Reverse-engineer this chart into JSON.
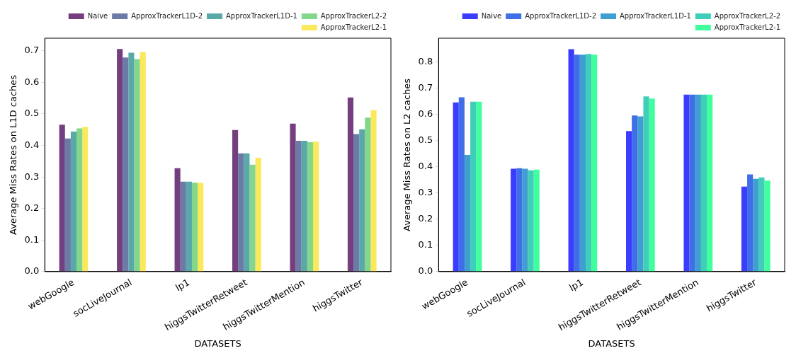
{
  "chart_data": [
    {
      "type": "bar",
      "xlabel": "DATASETS",
      "ylabel": "Average Miss Rates on L1D caches",
      "categories": [
        "webGoogle",
        "socLiveJournal",
        "lp1",
        "higgsTwitterRetweet",
        "higgsTwitterMention",
        "higgsTwitter"
      ],
      "ylim": [
        0,
        0.74
      ],
      "yticks": [
        {
          "value": 0,
          "label": "0.0"
        },
        0.1,
        0.2,
        0.3,
        0.4,
        0.5,
        0.6,
        0.7
      ],
      "legend": "top right",
      "grid": false,
      "series": [
        {
          "name": "Naive",
          "color": "#743f7f",
          "values": [
            0.466,
            0.706,
            0.328,
            0.449,
            0.469,
            0.552
          ]
        },
        {
          "name": "ApproxTrackerL1D-2",
          "color": "#6b7ba6",
          "values": [
            0.422,
            0.679,
            0.285,
            0.375,
            0.415,
            0.436
          ]
        },
        {
          "name": "ApproxTrackerL1D-1",
          "color": "#5aa9a9",
          "values": [
            0.444,
            0.694,
            0.285,
            0.375,
            0.415,
            0.451
          ]
        },
        {
          "name": "ApproxTrackerL2-2",
          "color": "#84d68a",
          "values": [
            0.454,
            0.674,
            0.282,
            0.339,
            0.41,
            0.488
          ]
        },
        {
          "name": "ApproxTrackerL2-1",
          "color": "#fbe95c",
          "values": [
            0.459,
            0.696,
            0.282,
            0.361,
            0.412,
            0.512
          ]
        }
      ]
    },
    {
      "type": "bar",
      "xlabel": "DATASETS",
      "ylabel": "Average Miss Rates on L2 caches",
      "categories": [
        "webGoogle",
        "socLiveJournal",
        "lp1",
        "higgsTwitterRetweet",
        "higgsTwitterMention",
        "higgsTwitter"
      ],
      "ylim": [
        0,
        0.89
      ],
      "yticks": [
        {
          "value": 0,
          "label": "0.0"
        },
        0.1,
        0.2,
        0.3,
        0.4,
        0.5,
        0.6,
        0.7,
        0.8
      ],
      "legend": "top right",
      "grid": false,
      "series": [
        {
          "name": "Naive",
          "color": "#3c3cff",
          "values": [
            0.645,
            0.392,
            0.848,
            0.536,
            0.675,
            0.324
          ]
        },
        {
          "name": "ApproxTrackerL1D-2",
          "color": "#3f6fe6",
          "values": [
            0.665,
            0.394,
            0.827,
            0.595,
            0.675,
            0.371
          ]
        },
        {
          "name": "ApproxTrackerL1D-1",
          "color": "#3f9fd0",
          "values": [
            0.445,
            0.392,
            0.827,
            0.592,
            0.675,
            0.354
          ]
        },
        {
          "name": "ApproxTrackerL2-2",
          "color": "#3fcfb8",
          "values": [
            0.648,
            0.386,
            0.83,
            0.668,
            0.675,
            0.359
          ]
        },
        {
          "name": "ApproxTrackerL2-1",
          "color": "#3fff9f",
          "values": [
            0.648,
            0.389,
            0.827,
            0.66,
            0.675,
            0.347
          ]
        }
      ]
    }
  ]
}
